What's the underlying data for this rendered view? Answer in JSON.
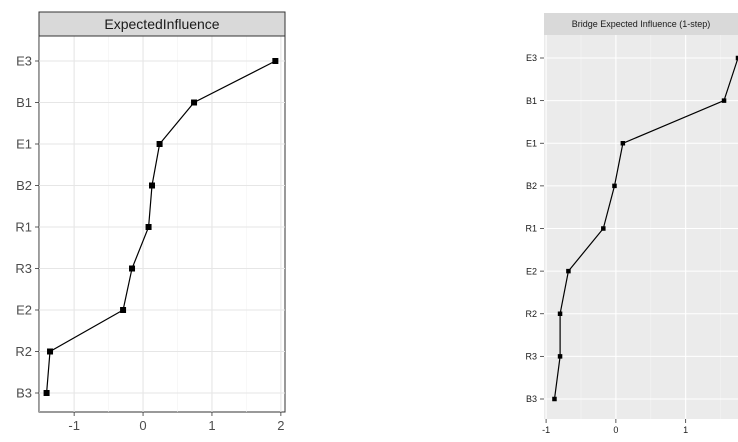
{
  "chart_data": [
    {
      "type": "line",
      "title": "ExpectedInfluence",
      "categories": [
        "E3",
        "B1",
        "E1",
        "B2",
        "R1",
        "R3",
        "E2",
        "R2",
        "B3"
      ],
      "values": [
        1.92,
        0.74,
        0.24,
        0.13,
        0.08,
        -0.16,
        -0.29,
        -1.35,
        -1.4
      ],
      "xlabel": "",
      "ylabel": "",
      "xlim": [
        -1.51,
        2.06
      ],
      "xticks": [
        -1,
        0,
        1,
        2
      ],
      "xtick_labels": [
        "-1",
        "0",
        "1",
        "2"
      ],
      "grid": true
    },
    {
      "type": "line",
      "title": "Bridge Expected Influence (1-step)",
      "categories": [
        "E3",
        "B1",
        "E1",
        "B2",
        "R1",
        "E2",
        "R2",
        "R3",
        "B3"
      ],
      "values": [
        1.75,
        1.55,
        0.1,
        -0.02,
        -0.18,
        -0.68,
        -0.8,
        -0.8,
        -0.88
      ],
      "xlabel": "",
      "ylabel": "",
      "xlim": [
        -1.03,
        1.75
      ],
      "xticks": [
        -1,
        0,
        1
      ],
      "xtick_labels": [
        "-1",
        "0",
        "1"
      ],
      "grid": true
    }
  ]
}
